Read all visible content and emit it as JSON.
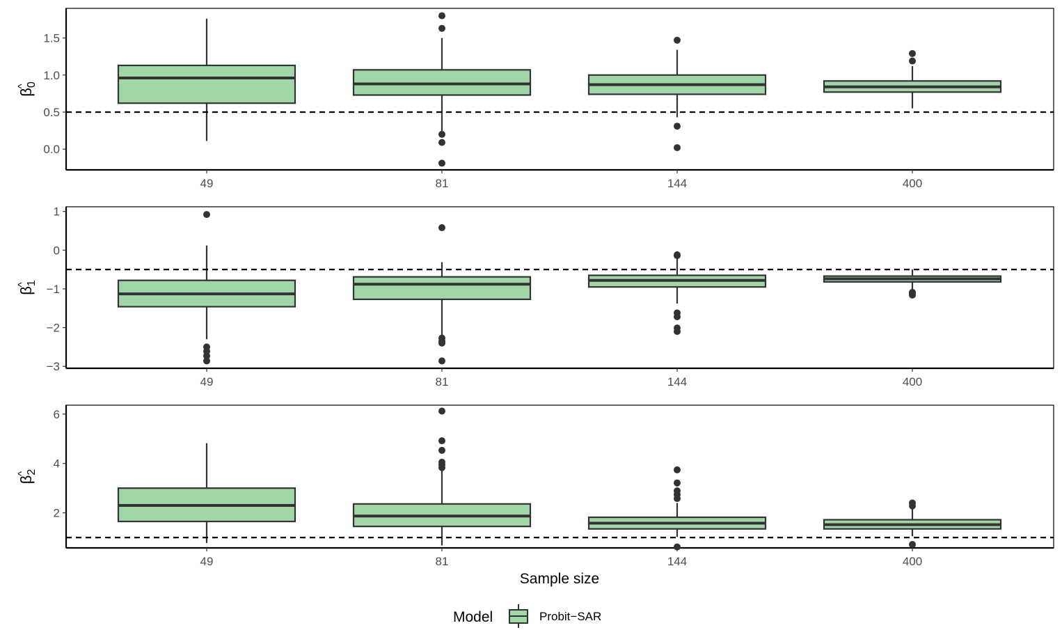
{
  "chart_data": {
    "type": "box",
    "xlabel": "Sample size",
    "categories": [
      "49",
      "81",
      "144",
      "400"
    ],
    "legend": {
      "title": "Model",
      "entries": [
        {
          "label": "Probit−SAR",
          "color": "#a1d7a8"
        }
      ],
      "position": "bottom"
    },
    "colors": {
      "box_fill": "#a1d7a8",
      "box_line": "#333333",
      "outlier": "#333333",
      "reference_line": "#000000"
    },
    "grid": false,
    "panels": [
      {
        "ylabel_symbol": "β",
        "ylabel_sub": "0",
        "ylabel_hat": "^",
        "ylim": [
          -0.28,
          1.9
        ],
        "yticks": [
          0,
          0.5,
          1,
          1.5
        ],
        "ytick_labels": [
          "0.0",
          "0.5",
          "1.0",
          "1.5"
        ],
        "reference": 0.5,
        "boxes": [
          {
            "category": "49",
            "whisker_low": 0.11,
            "q1": 0.62,
            "median": 0.96,
            "q3": 1.13,
            "whisker_high": 1.76,
            "outliers": []
          },
          {
            "category": "81",
            "whisker_low": 0.22,
            "q1": 0.73,
            "median": 0.88,
            "q3": 1.07,
            "whisker_high": 1.5,
            "outliers": [
              1.8,
              1.63,
              0.2,
              0.09,
              -0.19
            ]
          },
          {
            "category": "144",
            "whisker_low": 0.43,
            "q1": 0.74,
            "median": 0.87,
            "q3": 1.0,
            "whisker_high": 1.34,
            "outliers": [
              1.47,
              0.31,
              0.02
            ]
          },
          {
            "category": "400",
            "whisker_low": 0.55,
            "q1": 0.77,
            "median": 0.84,
            "q3": 0.92,
            "whisker_high": 1.12,
            "outliers": [
              1.29,
              1.19
            ]
          }
        ]
      },
      {
        "ylabel_symbol": "β",
        "ylabel_sub": "1",
        "ylabel_hat": "^",
        "ylim": [
          -3.05,
          1.12
        ],
        "yticks": [
          -3,
          -2,
          -1,
          0,
          1
        ],
        "ytick_labels": [
          "−3",
          "−2",
          "−1",
          "0",
          "1"
        ],
        "reference": -0.5,
        "boxes": [
          {
            "category": "49",
            "whisker_low": -2.3,
            "q1": -1.46,
            "median": -1.13,
            "q3": -0.78,
            "whisker_high": 0.12,
            "outliers": [
              0.92,
              -2.5,
              -2.61,
              -2.73,
              -2.86
            ]
          },
          {
            "category": "81",
            "whisker_low": -2.2,
            "q1": -1.27,
            "median": -0.88,
            "q3": -0.69,
            "whisker_high": -0.31,
            "outliers": [
              0.58,
              -2.27,
              -2.35,
              -2.4,
              -2.86
            ]
          },
          {
            "category": "144",
            "whisker_low": -1.38,
            "q1": -0.95,
            "median": -0.78,
            "q3": -0.65,
            "whisker_high": -0.22,
            "outliers": [
              -0.12,
              -0.14,
              -1.62,
              -1.72,
              -2.01,
              -2.1
            ]
          },
          {
            "category": "400",
            "whisker_low": -1.05,
            "q1": -0.82,
            "median": -0.74,
            "q3": -0.67,
            "whisker_high": -0.5,
            "outliers": [
              -1.09,
              -1.12,
              -1.16
            ]
          }
        ]
      },
      {
        "ylabel_symbol": "β",
        "ylabel_sub": "2",
        "ylabel_hat": "^",
        "ylim": [
          0.58,
          6.36
        ],
        "yticks": [
          2,
          4,
          6
        ],
        "ytick_labels": [
          "2",
          "4",
          "6"
        ],
        "reference": 1,
        "boxes": [
          {
            "category": "49",
            "whisker_low": 0.78,
            "q1": 1.65,
            "median": 2.3,
            "q3": 3.0,
            "whisker_high": 4.82,
            "outliers": []
          },
          {
            "category": "81",
            "whisker_low": 0.68,
            "q1": 1.45,
            "median": 1.87,
            "q3": 2.36,
            "whisker_high": 3.7,
            "outliers": [
              6.12,
              4.92,
              4.53,
              4.05,
              3.95,
              3.83
            ]
          },
          {
            "category": "144",
            "whisker_low": 1.02,
            "q1": 1.35,
            "median": 1.58,
            "q3": 1.82,
            "whisker_high": 2.4,
            "outliers": [
              3.74,
              3.21,
              2.89,
              2.74,
              2.58,
              0.62
            ]
          },
          {
            "category": "400",
            "whisker_low": 1.05,
            "q1": 1.35,
            "median": 1.52,
            "q3": 1.72,
            "whisker_high": 2.2,
            "outliers": [
              2.4,
              2.28,
              0.72
            ]
          }
        ]
      }
    ]
  }
}
